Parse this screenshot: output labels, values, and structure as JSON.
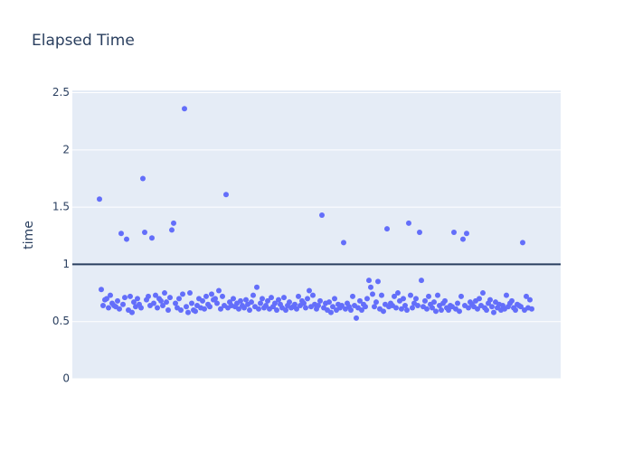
{
  "chart_data": {
    "type": "scatter",
    "title": "Elapsed Time",
    "ylabel": "time",
    "color": "#636efa",
    "hline": 1,
    "hline_color": "#2a3f5f",
    "ylim": [
      0,
      2.52
    ],
    "yticks": [
      0,
      0.5,
      1,
      1.5,
      2,
      2.5
    ],
    "grid": true,
    "values": [
      1.57,
      0.78,
      0.64,
      0.69,
      0.7,
      0.62,
      0.73,
      0.66,
      0.64,
      0.63,
      0.68,
      0.61,
      1.27,
      0.65,
      0.71,
      1.22,
      0.6,
      0.72,
      0.58,
      0.67,
      0.63,
      0.7,
      0.65,
      0.62,
      1.75,
      1.28,
      0.69,
      0.72,
      0.64,
      1.23,
      0.66,
      0.73,
      0.62,
      0.7,
      0.68,
      0.64,
      0.75,
      0.67,
      0.6,
      0.71,
      1.3,
      1.36,
      0.66,
      0.62,
      0.7,
      0.6,
      0.74,
      2.36,
      0.63,
      0.58,
      0.75,
      0.66,
      0.6,
      0.59,
      0.64,
      0.7,
      0.62,
      0.68,
      0.61,
      0.72,
      0.65,
      0.63,
      0.74,
      0.69,
      0.7,
      0.66,
      0.77,
      0.61,
      0.72,
      0.64,
      1.61,
      0.62,
      0.67,
      0.64,
      0.7,
      0.63,
      0.66,
      0.61,
      0.68,
      0.64,
      0.62,
      0.69,
      0.65,
      0.6,
      0.67,
      0.73,
      0.63,
      0.8,
      0.61,
      0.66,
      0.7,
      0.62,
      0.64,
      0.68,
      0.61,
      0.71,
      0.63,
      0.66,
      0.6,
      0.69,
      0.65,
      0.62,
      0.71,
      0.6,
      0.64,
      0.67,
      0.62,
      0.63,
      0.65,
      0.61,
      0.72,
      0.64,
      0.68,
      0.66,
      0.62,
      0.7,
      0.77,
      0.63,
      0.73,
      0.65,
      0.61,
      0.64,
      0.68,
      1.43,
      0.62,
      0.66,
      0.6,
      0.67,
      0.58,
      0.63,
      0.7,
      0.6,
      0.65,
      0.62,
      0.64,
      1.19,
      0.61,
      0.66,
      0.63,
      0.6,
      0.72,
      0.64,
      0.53,
      0.62,
      0.68,
      0.6,
      0.65,
      0.63,
      0.7,
      0.86,
      0.8,
      0.74,
      0.63,
      0.67,
      0.85,
      0.61,
      0.73,
      0.59,
      0.65,
      1.31,
      0.63,
      0.66,
      0.64,
      0.72,
      0.62,
      0.75,
      0.68,
      0.61,
      0.7,
      0.64,
      0.6,
      1.36,
      0.73,
      0.62,
      0.66,
      0.7,
      0.64,
      1.28,
      0.86,
      0.63,
      0.68,
      0.61,
      0.72,
      0.65,
      0.62,
      0.67,
      0.59,
      0.73,
      0.64,
      0.6,
      0.66,
      0.68,
      0.62,
      0.6,
      0.64,
      0.63,
      1.28,
      0.61,
      0.66,
      0.59,
      0.72,
      1.22,
      0.64,
      1.27,
      0.62,
      0.67,
      0.65,
      0.63,
      0.68,
      0.61,
      0.7,
      0.64,
      0.75,
      0.62,
      0.6,
      0.66,
      0.69,
      0.63,
      0.58,
      0.67,
      0.62,
      0.65,
      0.6,
      0.64,
      0.61,
      0.73,
      0.63,
      0.66,
      0.68,
      0.62,
      0.6,
      0.65,
      0.64,
      0.63,
      1.19,
      0.6,
      0.72,
      0.62,
      0.69,
      0.61
    ]
  }
}
